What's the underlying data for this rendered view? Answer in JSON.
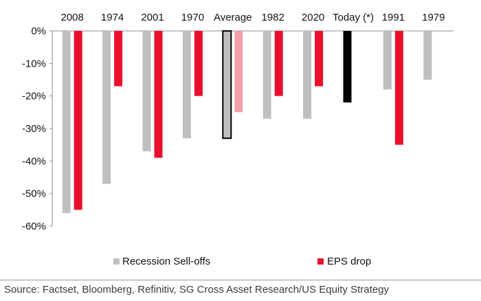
{
  "chart_data": {
    "type": "bar",
    "categories": [
      "2008",
      "1974",
      "2001",
      "1970",
      "Average",
      "1982",
      "2020",
      "Today (*)",
      "1991",
      "1979"
    ],
    "series": [
      {
        "name": "Recession Sell-offs",
        "color": "#bfbfbf",
        "values": [
          -56,
          -47,
          -37,
          -33,
          -33,
          -27,
          -27,
          -22,
          -18,
          -15
        ]
      },
      {
        "name": "EPS drop",
        "color": "#e8102c",
        "values": [
          -55,
          -17,
          -39,
          -20,
          -25,
          -20,
          -17,
          null,
          -35,
          null
        ]
      }
    ],
    "highlight": {
      "Average": {
        "series_0_fill": "#bfbfbf",
        "series_0_outline": "#000000",
        "series_1_fill": "#f4a0aa"
      },
      "Today (*)": {
        "series_0_fill": "#000000"
      }
    },
    "yticks": [
      "0%",
      "-10%",
      "-20%",
      "-30%",
      "-40%",
      "-50%",
      "-60%"
    ],
    "ylim": [
      -60,
      0
    ],
    "legend_position": "bottom",
    "title": "",
    "xlabel": "",
    "ylabel": ""
  },
  "source_text": "Source: Factset, Bloomberg, Refinitiv, SG Cross Asset Research/US Equity Strategy"
}
